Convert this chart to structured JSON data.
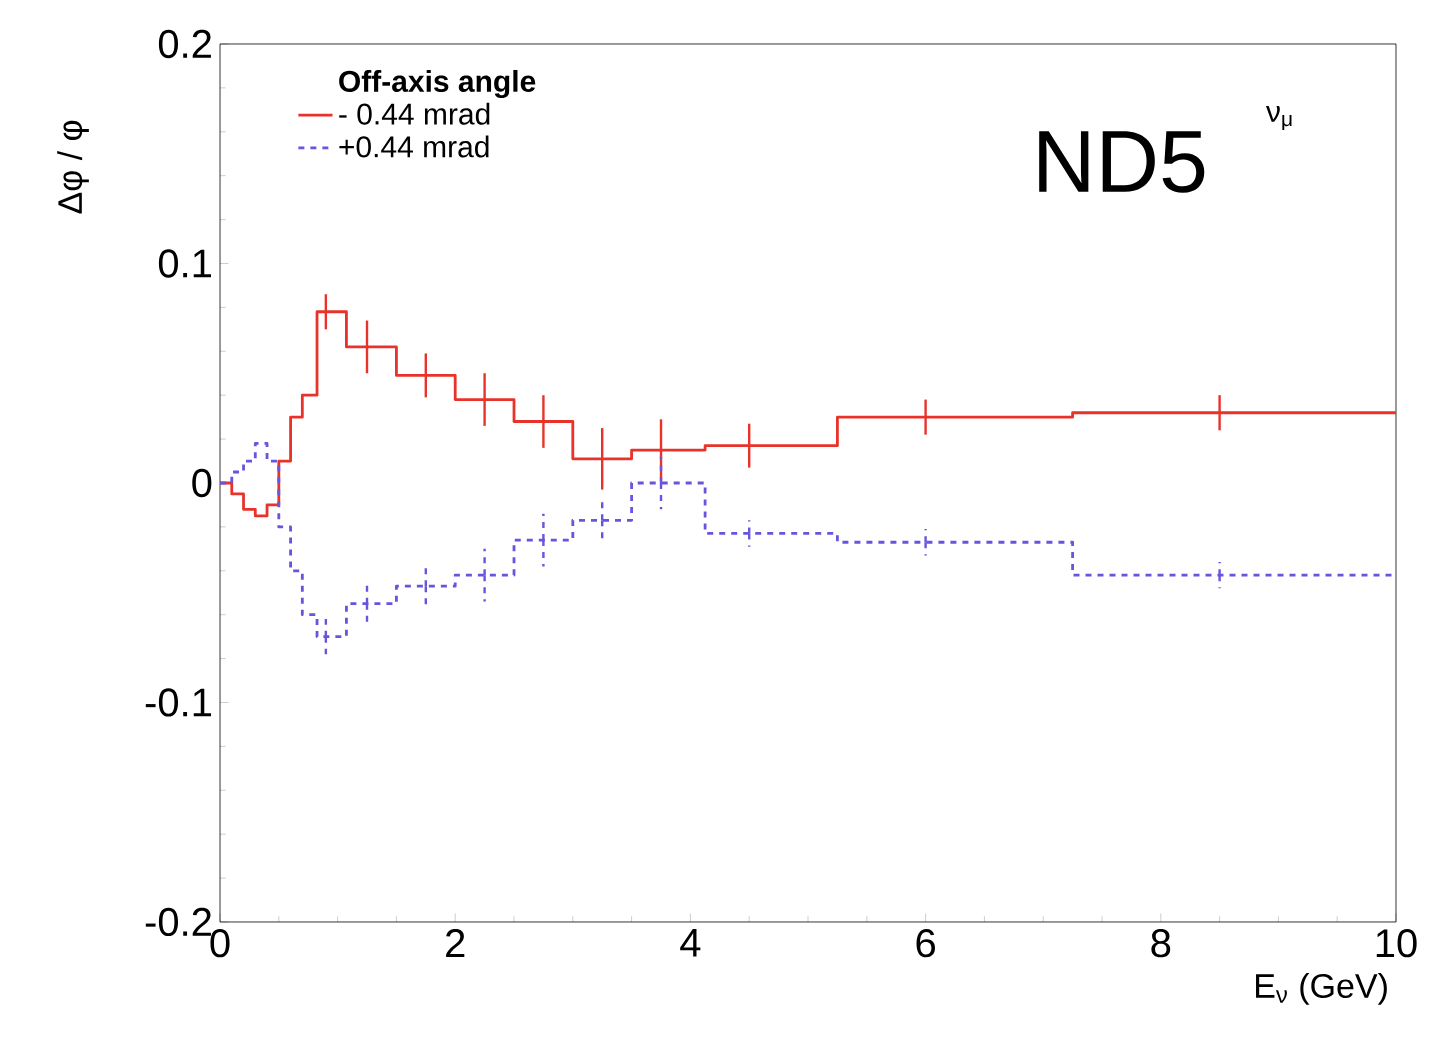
{
  "chart_data": {
    "type": "step",
    "xlabel": "E$_{ν}$ (GeV)",
    "ylabel": "Δφ / φ",
    "legend_title": "Off-axis angle",
    "legend": "top left",
    "grid": false,
    "annotations": [
      "ND5",
      "ν$_{μ}$"
    ],
    "xlim": [
      0,
      10
    ],
    "xticks": [
      0,
      2,
      4,
      6,
      8,
      10
    ],
    "ylim": [
      -0.2,
      0.2
    ],
    "yticks": [
      {
        "value": -0.2,
        "label": "-0.2"
      },
      {
        "value": -0.1,
        "label": "-0.1"
      },
      0,
      0.1,
      0.2
    ],
    "x": [
      0,
      0.05,
      0.15,
      0.25,
      0.35,
      0.45,
      0.55,
      0.65,
      0.75,
      0.9,
      1.25,
      1.75,
      2.25,
      2.75,
      3.25,
      3.75,
      4.5,
      6,
      8.5,
      10
    ],
    "series": [
      {
        "name": "- 0.44 mrad",
        "color": "#e8332b",
        "line_style": "solid",
        "values": [
          0,
          0,
          -0.005,
          -0.012,
          -0.015,
          -0.01,
          0.01,
          0.03,
          0.04,
          0.078,
          0.062,
          0.049,
          0.038,
          0.028,
          0.011,
          0.015,
          0.017,
          0.03,
          0.032,
          0.032
        ],
        "errors": [
          null,
          null,
          null,
          null,
          null,
          null,
          null,
          null,
          null,
          0.008,
          0.012,
          0.01,
          0.012,
          0.012,
          0.014,
          0.014,
          0.01,
          0.008,
          0.008,
          null
        ]
      },
      {
        "name": "+0.44 mrad",
        "color": "#6655dd",
        "line_style": "dashed",
        "values": [
          0,
          0,
          0.005,
          0.01,
          0.018,
          0.01,
          -0.02,
          -0.04,
          -0.06,
          -0.07,
          -0.055,
          -0.047,
          -0.042,
          -0.026,
          -0.017,
          0.0,
          -0.023,
          -0.027,
          -0.042,
          -0.042
        ],
        "errors": [
          null,
          null,
          null,
          null,
          null,
          null,
          null,
          null,
          null,
          0.008,
          0.01,
          0.01,
          0.012,
          0.012,
          0.01,
          0.012,
          0.006,
          0.006,
          0.006,
          null
        ]
      }
    ]
  }
}
